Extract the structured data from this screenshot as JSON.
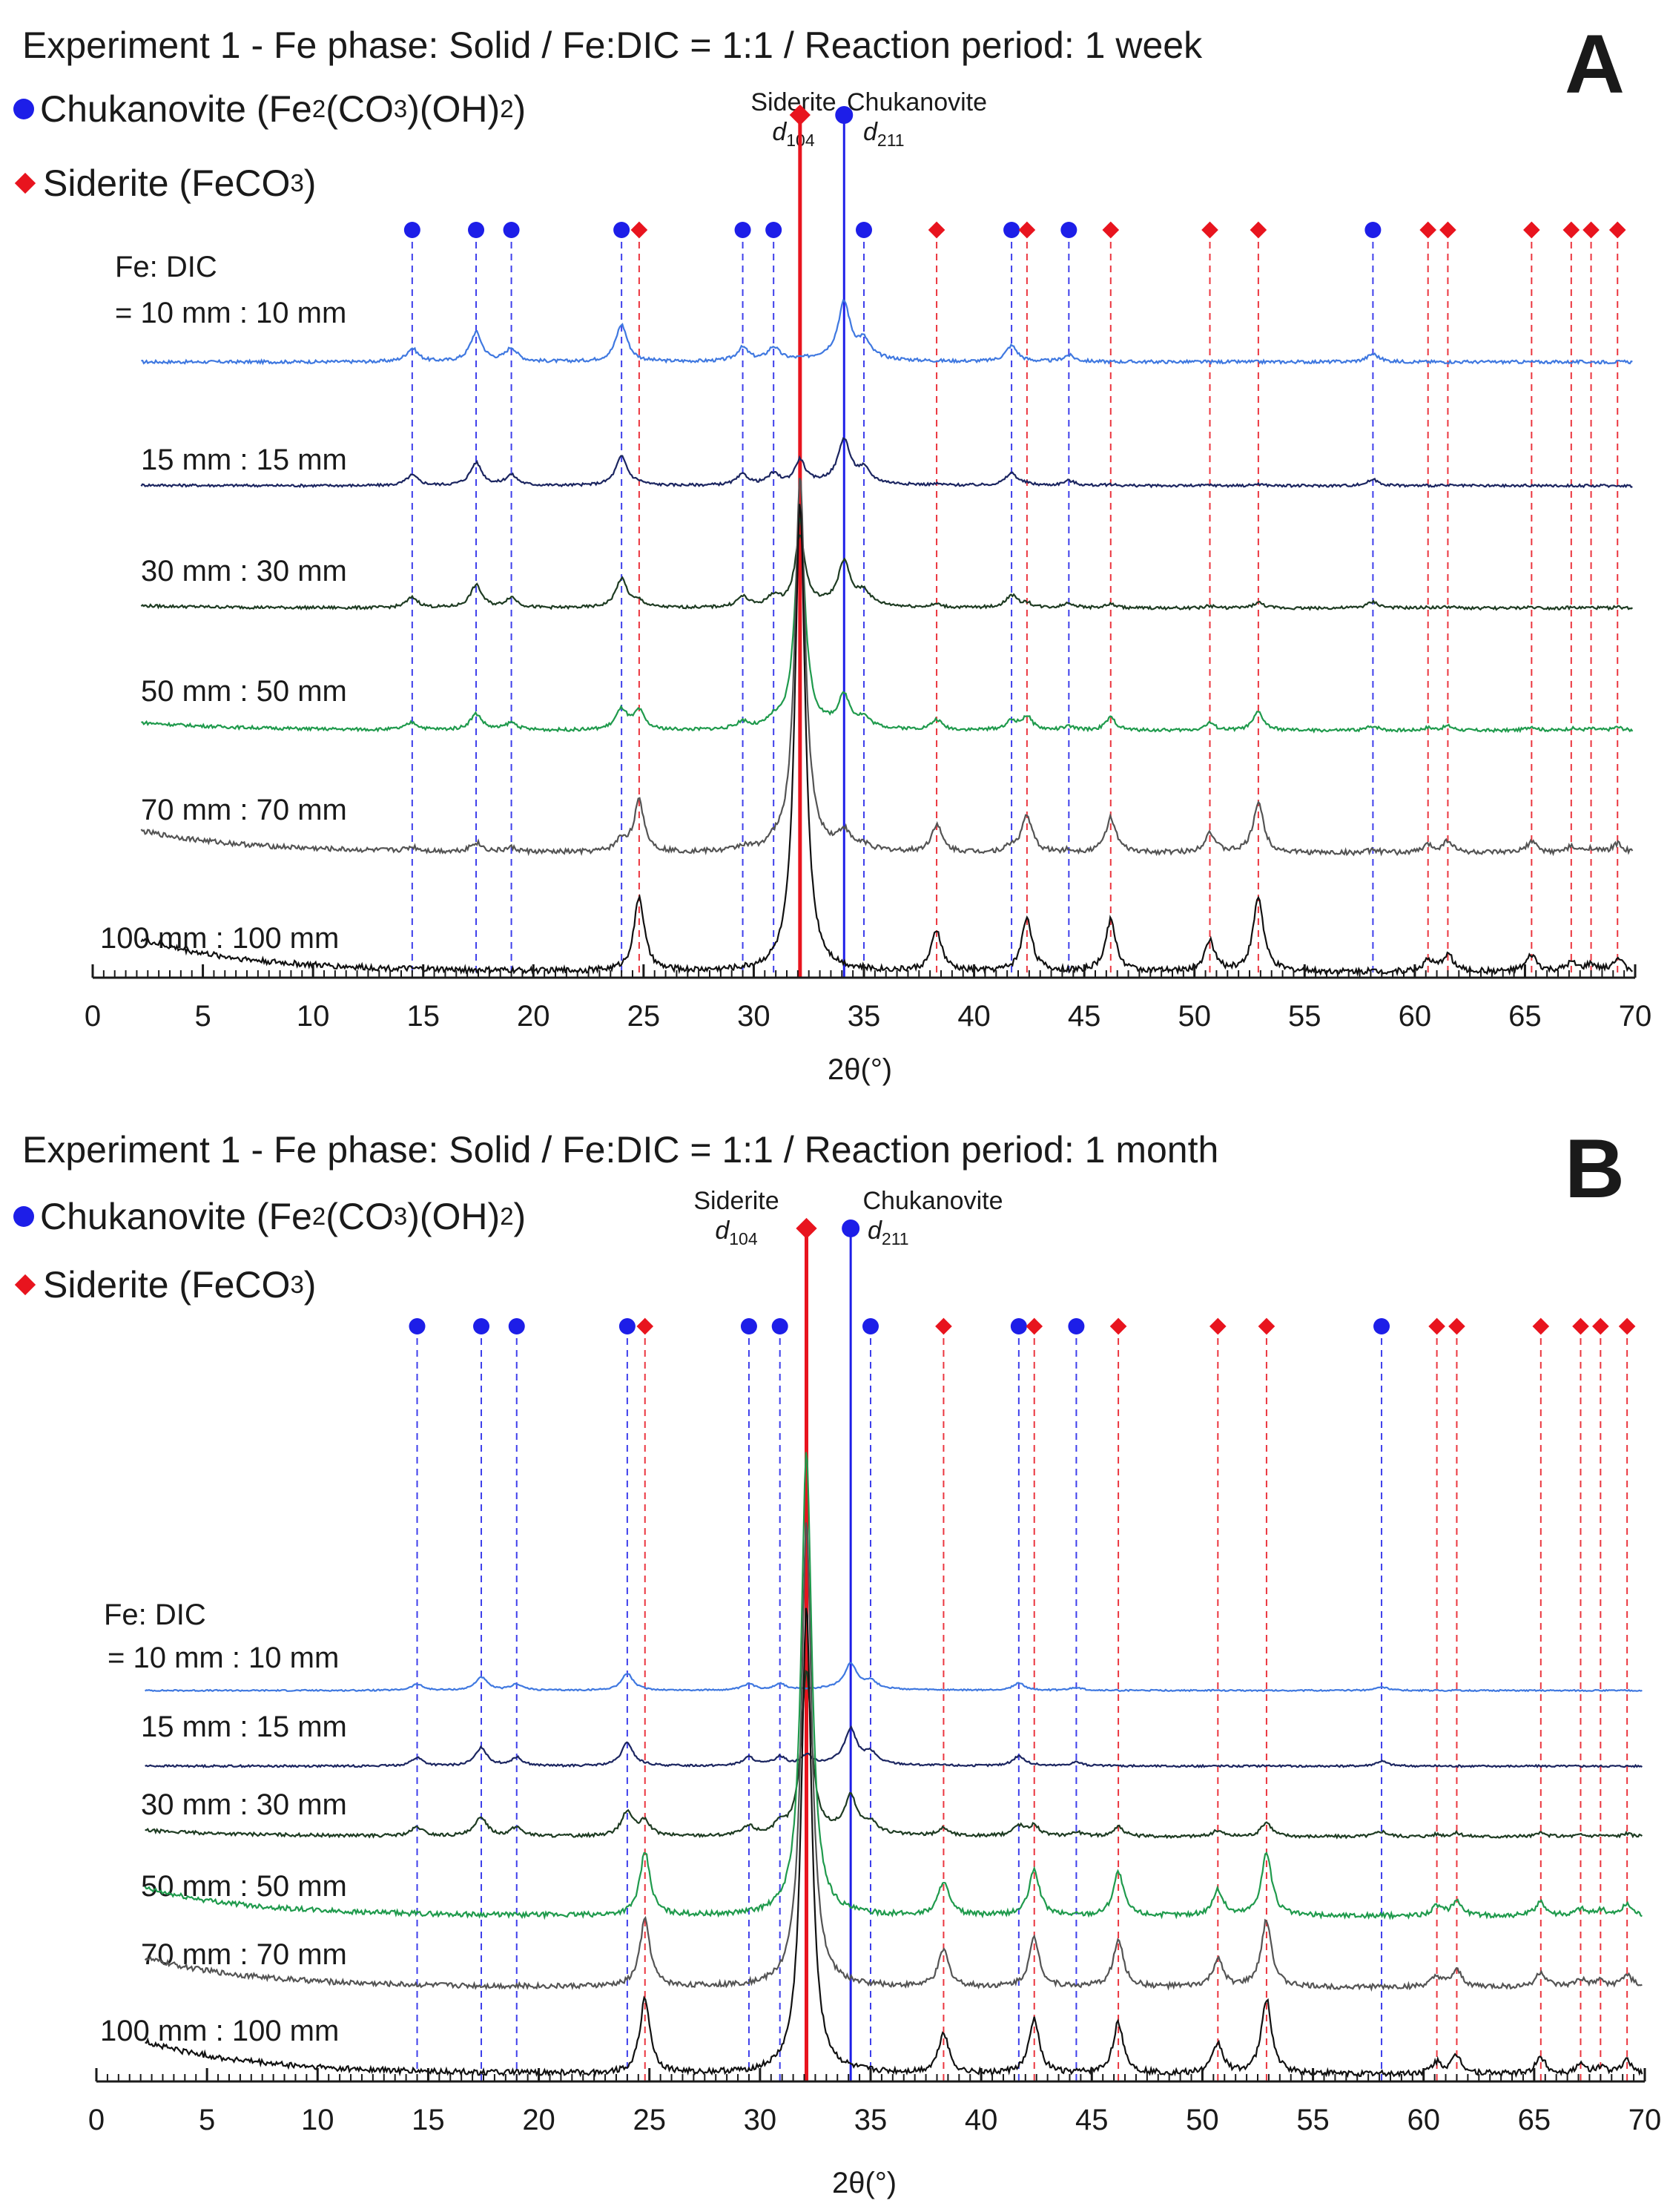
{
  "colors": {
    "chukanovite": "#1d1ee8",
    "siderite": "#e8141e",
    "series": [
      "#3f78e0",
      "#1b2560",
      "#1e3b22",
      "#1f9a4c",
      "#545454",
      "#111111"
    ]
  },
  "legend": {
    "chukanovite": {
      "name": "Chukanovite (Fe",
      "sub1": "2",
      "mid1": "(CO",
      "sub2": "3",
      "mid2": ")(OH)",
      "sub3": "2",
      "end": ")"
    },
    "siderite": {
      "name": "Siderite (FeCO",
      "sub1": "3",
      "end": ")"
    }
  },
  "reference_lines": {
    "siderite": {
      "name": "Siderite",
      "d_label": "d",
      "d_sub": "104"
    },
    "chukanovite": {
      "name": "Chukanovite",
      "d_label": "d",
      "d_sub": "211"
    }
  },
  "chart_data": [
    {
      "panel": "A",
      "type": "line",
      "title": "Experiment 1 - Fe phase: Solid / Fe:DIC = 1:1 / Reaction period: 1 week",
      "xlabel": "2θ(°)",
      "xlim": [
        0,
        70
      ],
      "xticks": [
        "0",
        "5",
        "10",
        "15",
        "20",
        "25",
        "30",
        "35",
        "40",
        "45",
        "50",
        "55",
        "60",
        "65",
        "70"
      ],
      "label_prefix": "Fe: DIC",
      "series": [
        {
          "name": "10 mm : 10 mm",
          "label_line": "= 10 mm : 10 mm",
          "phase_mix": 0.0,
          "scale": 0.55
        },
        {
          "name": "15 mm : 15 mm",
          "label_line": "15 mm : 15 mm",
          "phase_mix": 0.05,
          "scale": 0.45
        },
        {
          "name": "30 mm : 30 mm",
          "label_line": "30 mm : 30 mm",
          "phase_mix": 0.15,
          "scale": 0.5
        },
        {
          "name": "50 mm : 50 mm",
          "label_line": "50 mm : 50 mm",
          "phase_mix": 0.45,
          "scale": 0.55
        },
        {
          "name": "70 mm : 70 mm",
          "label_line": "70 mm : 70 mm",
          "phase_mix": 0.8,
          "scale": 0.85
        },
        {
          "name": "100 mm : 100 mm",
          "label_line": "100 mm : 100 mm",
          "phase_mix": 1.0,
          "scale": 1.0
        }
      ],
      "chukanovite_peaks": [
        14.5,
        17.4,
        19.0,
        24.0,
        29.5,
        30.9,
        35.0,
        41.7,
        44.3,
        58.1
      ],
      "siderite_peaks": [
        24.8,
        38.3,
        42.4,
        46.2,
        50.7,
        52.9,
        60.6,
        61.5,
        65.3,
        67.1,
        68.0,
        69.2
      ],
      "siderite_d104": 32.1,
      "chukanovite_d211": 34.1
    },
    {
      "panel": "B",
      "type": "line",
      "title": "Experiment 1 - Fe phase: Solid / Fe:DIC = 1:1 / Reaction period: 1 month",
      "xlabel": "2θ(°)",
      "xlim": [
        0,
        70
      ],
      "xticks": [
        "0",
        "5",
        "10",
        "15",
        "20",
        "25",
        "30",
        "35",
        "40",
        "45",
        "50",
        "55",
        "60",
        "65",
        "70"
      ],
      "label_prefix": "Fe: DIC",
      "series": [
        {
          "name": "10 mm : 10 mm",
          "label_line": "= 10 mm : 10 mm",
          "phase_mix": 0.0,
          "scale": 0.25
        },
        {
          "name": "15 mm : 15 mm",
          "label_line": "15 mm : 15 mm",
          "phase_mix": 0.02,
          "scale": 0.35
        },
        {
          "name": "30 mm : 30 mm",
          "label_line": "30 mm : 30 mm",
          "phase_mix": 0.35,
          "scale": 0.55
        },
        {
          "name": "50 mm : 50 mm",
          "label_line": "50 mm : 50 mm",
          "phase_mix": 1.0,
          "scale": 0.85
        },
        {
          "name": "70 mm : 70 mm",
          "label_line": "70 mm : 70 mm",
          "phase_mix": 1.0,
          "scale": 0.9
        },
        {
          "name": "100 mm : 100 mm",
          "label_line": "100 mm : 100 mm",
          "phase_mix": 1.0,
          "scale": 1.0
        }
      ],
      "chukanovite_peaks": [
        14.5,
        17.4,
        19.0,
        24.0,
        29.5,
        30.9,
        35.0,
        41.7,
        44.3,
        58.1
      ],
      "siderite_peaks": [
        24.8,
        38.3,
        42.4,
        46.2,
        50.7,
        52.9,
        60.6,
        61.5,
        65.3,
        67.1,
        68.0,
        69.2
      ],
      "siderite_d104": 32.1,
      "chukanovite_d211": 34.1
    }
  ]
}
